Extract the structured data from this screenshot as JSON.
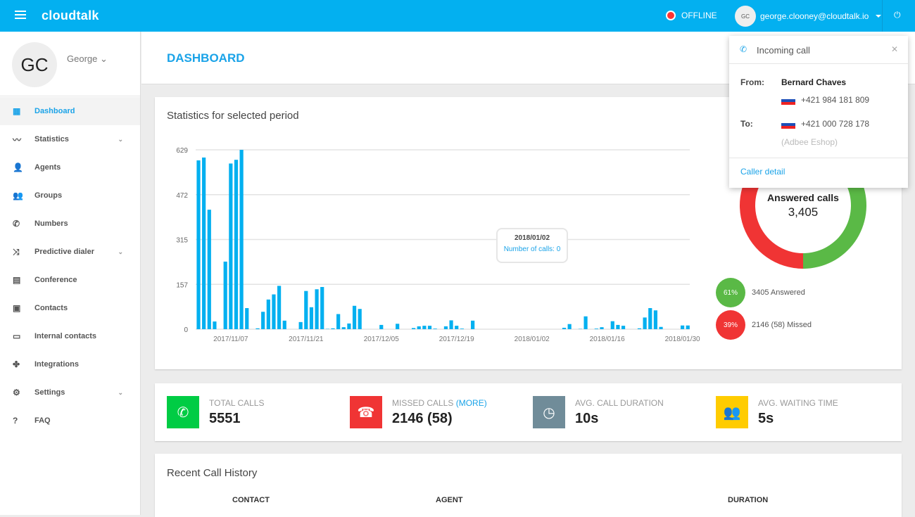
{
  "header": {
    "logo": "cloudtalk",
    "status": "OFFLINE",
    "user_initials": "GC",
    "user_email": "george.clooney@cloudtalk.io",
    "status_color": "#f33333",
    "brand_color": "#03b0f0"
  },
  "profile": {
    "initials": "GC",
    "name": "George"
  },
  "sidebar": {
    "items": [
      {
        "label": "Dashboard",
        "icon": "dashboard-icon",
        "glyph": "▦",
        "active": true
      },
      {
        "label": "Statistics",
        "icon": "trending-icon",
        "glyph": "〰",
        "chevron": true
      },
      {
        "label": "Agents",
        "icon": "person-icon",
        "glyph": "👤"
      },
      {
        "label": "Groups",
        "icon": "group-icon",
        "glyph": "👥"
      },
      {
        "label": "Numbers",
        "icon": "phone-icon",
        "glyph": "✆"
      },
      {
        "label": "Predictive dialer",
        "icon": "shuffle-icon",
        "glyph": "⤨",
        "chevron": true
      },
      {
        "label": "Conference",
        "icon": "forum-icon",
        "glyph": "▤"
      },
      {
        "label": "Contacts",
        "icon": "contacts-icon",
        "glyph": "▣"
      },
      {
        "label": "Internal contacts",
        "icon": "contact-card-icon",
        "glyph": "▭"
      },
      {
        "label": "Integrations",
        "icon": "puzzle-icon",
        "glyph": "✤"
      },
      {
        "label": "Settings",
        "icon": "gear-icon",
        "glyph": "⚙",
        "chevron": true
      },
      {
        "label": "FAQ",
        "icon": "help-icon",
        "glyph": "?"
      }
    ]
  },
  "page": {
    "title": "DASHBOARD"
  },
  "stats_card": {
    "title": "Statistics for selected period",
    "tooltip": {
      "date": "2018/01/02",
      "text": "Number of calls: 0"
    },
    "donut": {
      "title": "Answered calls",
      "value": "3,405",
      "answered_pct": 61,
      "missed_pct": 39,
      "answered_color": "#5ab946",
      "missed_color": "#f03434"
    },
    "legend": [
      {
        "pct": "61%",
        "label": "3405 Answered"
      },
      {
        "pct": "39%",
        "label": "2146 (58) Missed"
      }
    ]
  },
  "chart_data": {
    "type": "bar",
    "xlim": [
      "2017/11/01",
      "2018/01/31"
    ],
    "interval": "daily",
    "ylim": [
      0,
      629
    ],
    "yticks": [
      "629",
      "472",
      "315",
      "157",
      "0"
    ],
    "xticks": [
      "2017/11/07",
      "2017/11/21",
      "2017/12/05",
      "2017/12/19",
      "2018/01/02",
      "2018/01/16",
      "2018/01/30"
    ],
    "bar_color": "#03b0f0",
    "values": [
      592,
      602,
      419,
      27,
      0,
      237,
      581,
      594,
      629,
      74,
      0,
      3,
      61,
      104,
      122,
      152,
      30,
      0,
      0,
      25,
      134,
      77,
      140,
      148,
      1,
      3,
      53,
      7,
      20,
      82,
      71,
      0,
      0,
      0,
      15,
      0,
      0,
      19,
      0,
      0,
      4,
      10,
      12,
      12,
      2,
      0,
      10,
      31,
      12,
      2,
      0,
      30,
      0,
      0,
      0,
      0,
      0,
      0,
      0,
      0,
      0,
      0,
      0,
      0,
      0,
      0,
      0,
      0,
      5,
      18,
      0,
      1,
      45,
      0,
      2,
      7,
      0,
      28,
      15,
      12,
      0,
      0,
      3,
      41,
      74,
      66,
      8,
      0,
      0,
      0,
      13,
      13
    ]
  },
  "kpis": [
    {
      "label": "TOTAL CALLS",
      "value": "5551",
      "color": "#00cc44",
      "icon": "phone-icon",
      "glyph": "✆"
    },
    {
      "label": "MISSED CALLS",
      "more": "(MORE)",
      "value": "2146 (58)",
      "color": "#f03434",
      "icon": "missed-call-icon",
      "glyph": "☎"
    },
    {
      "label": "AVG. CALL DURATION",
      "value": "10s",
      "color": "#708c99",
      "icon": "clock-icon",
      "glyph": "◷"
    },
    {
      "label": "AVG. WAITING TIME",
      "value": "5s",
      "color": "#ffcc00",
      "icon": "people-icon",
      "glyph": "👥"
    }
  ],
  "history": {
    "title": "Recent Call History",
    "columns": [
      "CONTACT",
      "AGENT",
      "DURATION"
    ]
  },
  "incoming": {
    "title": "Incoming call",
    "from_label": "From:",
    "caller": "Bernard Chaves",
    "from_number": "+421 984 181 809",
    "to_label": "To:",
    "to_number": "+421 000 728 178",
    "to_name": "(Adbee Eshop)",
    "link": "Caller detail"
  }
}
